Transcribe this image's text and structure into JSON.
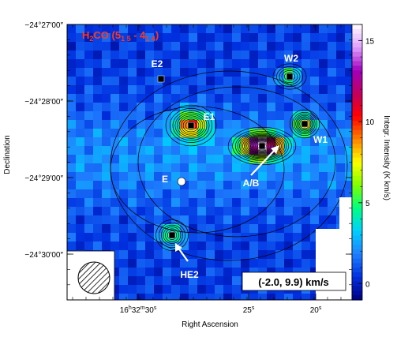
{
  "chart_data": {
    "type": "heatmap",
    "title_parts": {
      "main": "H",
      "sub1": "2",
      "mid": "CO (5",
      "sub2": "1 5",
      "dash": " - 4",
      "sub3": "1 4",
      "end": ")"
    },
    "velocity_label": "(-2.0, 9.9) km/s",
    "xlabel": "Right Ascension",
    "ylabel": "Declination",
    "colorbar_label": "Integr. Intensity (K km/s)",
    "colorbar_range": [
      -1,
      16
    ],
    "colorbar_ticks": [
      0,
      5,
      10,
      15
    ],
    "x_ticks": [
      "16$32$30",
      "25$",
      "20$"
    ],
    "x_tick_labels": [
      {
        "main": "16",
        "sup1": "h",
        "mid": "32",
        "sup2": "m",
        "end": "30",
        "sup3": "s"
      },
      {
        "main": "25",
        "sup1": "s"
      },
      {
        "main": "20",
        "sup1": "s"
      }
    ],
    "y_tick_labels": [
      "−24°27′00″",
      "−24°28′00″",
      "−24°29′00″",
      "−24°30′00″"
    ],
    "sources": [
      {
        "name": "E2",
        "marker": "square"
      },
      {
        "name": "W2",
        "marker": "square"
      },
      {
        "name": "E1",
        "marker": "square"
      },
      {
        "name": "W1",
        "marker": "square"
      },
      {
        "name": "E",
        "marker": "circle"
      },
      {
        "name": "A/B",
        "marker": "square"
      },
      {
        "name": "HE2",
        "marker": "square"
      }
    ],
    "peaks": [
      {
        "source": "A/B",
        "value": 15.5
      },
      {
        "source": "E1",
        "value": 8.5
      },
      {
        "source": "W2",
        "value": 4.5
      },
      {
        "source": "HE2",
        "value": 5.0
      },
      {
        "source": "W1",
        "value": 7.0
      }
    ],
    "beam": "hatched-circle",
    "colormap": [
      "#000080",
      "#0030e0",
      "#2080ff",
      "#00d0ff",
      "#00ff80",
      "#80ff00",
      "#ffff00",
      "#ff8000",
      "#ff0000",
      "#c00060",
      "#a000c0",
      "#e0a0ff",
      "#ffffff"
    ]
  }
}
